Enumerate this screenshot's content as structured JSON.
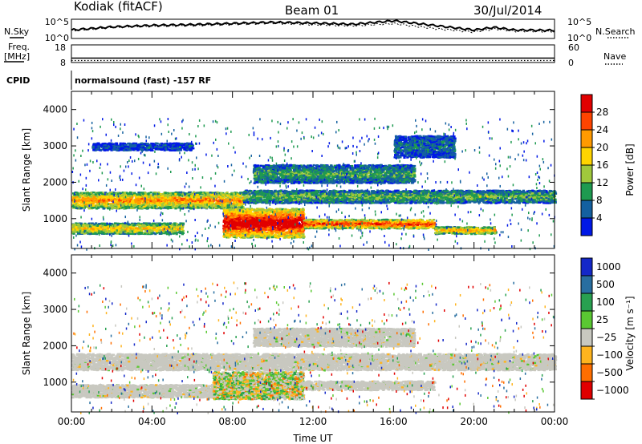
{
  "header": {
    "radar": "Kodiak (fitACF)",
    "beam": "Beam 01",
    "date": "30/Jul/2014"
  },
  "chart_data": [
    {
      "type": "line",
      "name": "noise-panel",
      "left_label": "N.Sky",
      "right_label": "N.Search",
      "left_ticks": [
        "10^5",
        "10^0"
      ],
      "right_ticks": [
        "10^5",
        "10^0"
      ],
      "x": [
        0,
        2,
        4,
        6,
        8,
        10,
        12,
        14,
        16,
        18,
        20,
        21,
        22,
        24
      ],
      "series": [
        {
          "values": [
            2.2,
            3.0,
            3.4,
            3.6,
            3.9,
            4.2,
            4.0,
            3.7,
            4.6,
            3.4,
            2.2,
            2.9,
            2.2,
            2.1
          ]
        },
        {
          "values": [
            2.0,
            2.9,
            3.2,
            3.4,
            3.7,
            4.0,
            3.6,
            3.3,
            3.9,
            2.6,
            1.7,
            2.5,
            1.9,
            1.8
          ]
        }
      ],
      "ylim": [
        0,
        5
      ]
    },
    {
      "type": "scatter",
      "name": "freq-panel",
      "left_label_top": "Freq.",
      "left_label_mid": "[MHz]",
      "right_label": "Nave",
      "left_ticks": [
        "18",
        "8"
      ],
      "right_ticks": [
        "60",
        "0"
      ],
      "freq_level": 10.5,
      "nave_level": 15,
      "ylim": [
        8,
        18
      ]
    },
    {
      "type": "heatmap",
      "name": "power",
      "cpid_label": "CPID",
      "cpid_text": "normalsound (fast) -157 RF",
      "ylabel": "Slant Range [km]",
      "yticks": [
        "4000",
        "3000",
        "2000",
        "1000"
      ],
      "ylim": [
        180,
        4500
      ],
      "colorbar_title": "Power [dB]",
      "colorbar_labels": [
        "28",
        "24",
        "20",
        "16",
        "12",
        "8",
        "4"
      ],
      "colorbar_colors": [
        "#e10000",
        "#ff4400",
        "#ff9a00",
        "#ffd400",
        "#a0c83c",
        "#1e9a50",
        "#1460a0",
        "#0018e6"
      ],
      "bands": [
        {
          "t0": 0,
          "t1": 8.5,
          "r_lo": 1300,
          "r_hi": 1750,
          "strength": 0.65
        },
        {
          "t0": 8.5,
          "t1": 24,
          "r_lo": 1450,
          "r_hi": 1800,
          "strength": 0.35
        },
        {
          "t0": 0,
          "t1": 5.5,
          "r_lo": 600,
          "r_hi": 900,
          "strength": 0.55
        },
        {
          "t0": 7.5,
          "t1": 11.5,
          "r_lo": 500,
          "r_hi": 1300,
          "strength": 0.95
        },
        {
          "t0": 11.5,
          "t1": 18,
          "r_lo": 750,
          "r_hi": 1000,
          "strength": 0.8
        },
        {
          "t0": 18,
          "t1": 21,
          "r_lo": 600,
          "r_hi": 800,
          "strength": 0.6
        },
        {
          "t0": 9,
          "t1": 17,
          "r_lo": 2000,
          "r_hi": 2500,
          "strength": 0.3
        },
        {
          "t0": 1,
          "t1": 6,
          "r_lo": 2900,
          "r_hi": 3100,
          "strength": 0.15
        },
        {
          "t0": 16,
          "t1": 19,
          "r_lo": 2700,
          "r_hi": 3300,
          "strength": 0.2
        }
      ]
    },
    {
      "type": "heatmap",
      "name": "velocity",
      "ylabel": "Slant Range [km]",
      "yticks": [
        "4000",
        "3000",
        "2000",
        "1000"
      ],
      "xticks": [
        "00:00",
        "04:00",
        "08:00",
        "12:00",
        "16:00",
        "20:00",
        "00:00"
      ],
      "xlabel": "Time UT",
      "ylim": [
        180,
        4500
      ],
      "colorbar_title": "Velocity [m s⁻¹]",
      "colorbar_labels": [
        "1000",
        "500",
        "100",
        "25",
        "−25",
        "−100",
        "−500",
        "−1000"
      ],
      "colorbar_colors": [
        "#1428c8",
        "#286ea0",
        "#28a050",
        "#5ac832",
        "#c8c8c0",
        "#ffb41e",
        "#ff6e00",
        "#e10000"
      ],
      "bands": [
        {
          "t0": 0,
          "t1": 24,
          "r_lo": 1350,
          "r_hi": 1800,
          "kind": "ground"
        },
        {
          "t0": 0,
          "t1": 7,
          "r_lo": 600,
          "r_hi": 950,
          "kind": "ground"
        },
        {
          "t0": 7,
          "t1": 11.5,
          "r_lo": 550,
          "r_hi": 1300,
          "kind": "mixed"
        },
        {
          "t0": 11.5,
          "t1": 18,
          "r_lo": 800,
          "r_hi": 1050,
          "kind": "ground"
        },
        {
          "t0": 9,
          "t1": 17,
          "r_lo": 2000,
          "r_hi": 2500,
          "kind": "ground"
        }
      ]
    }
  ]
}
